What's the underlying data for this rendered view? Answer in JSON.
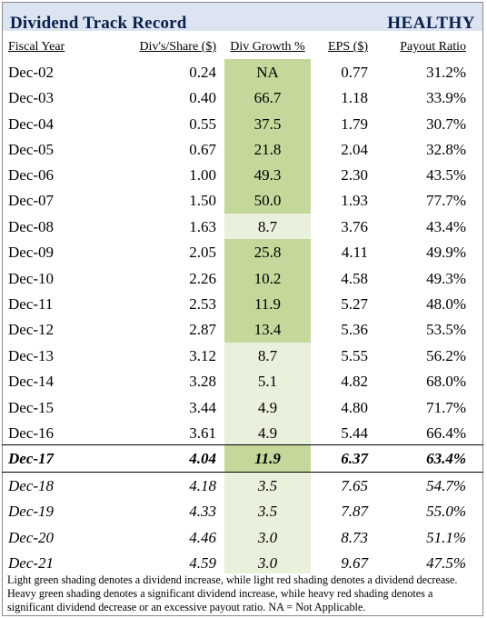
{
  "header": {
    "title": "Dividend Track Record",
    "status": "HEALTHY"
  },
  "colors": {
    "title_bar": "#dbe4f0",
    "title_text": "#0b1f4d",
    "heavy_green": "#c4d89b",
    "light_green": "#e9f0dc"
  },
  "columns": [
    "Fiscal Year",
    "Div's/Share ($)",
    "Div Growth %",
    "EPS ($)",
    "Payout Ratio"
  ],
  "rows": [
    {
      "year": "Dec-02",
      "div": "0.24",
      "growth": "NA",
      "eps": "0.77",
      "payout": "31.2%",
      "shade": "heavy"
    },
    {
      "year": "Dec-03",
      "div": "0.40",
      "growth": "66.7",
      "eps": "1.18",
      "payout": "33.9%",
      "shade": "heavy"
    },
    {
      "year": "Dec-04",
      "div": "0.55",
      "growth": "37.5",
      "eps": "1.79",
      "payout": "30.7%",
      "shade": "heavy"
    },
    {
      "year": "Dec-05",
      "div": "0.67",
      "growth": "21.8",
      "eps": "2.04",
      "payout": "32.8%",
      "shade": "heavy"
    },
    {
      "year": "Dec-06",
      "div": "1.00",
      "growth": "49.3",
      "eps": "2.30",
      "payout": "43.5%",
      "shade": "heavy"
    },
    {
      "year": "Dec-07",
      "div": "1.50",
      "growth": "50.0",
      "eps": "1.93",
      "payout": "77.7%",
      "shade": "heavy"
    },
    {
      "year": "Dec-08",
      "div": "1.63",
      "growth": "8.7",
      "eps": "3.76",
      "payout": "43.4%",
      "shade": "light"
    },
    {
      "year": "Dec-09",
      "div": "2.05",
      "growth": "25.8",
      "eps": "4.11",
      "payout": "49.9%",
      "shade": "heavy"
    },
    {
      "year": "Dec-10",
      "div": "2.26",
      "growth": "10.2",
      "eps": "4.58",
      "payout": "49.3%",
      "shade": "heavy"
    },
    {
      "year": "Dec-11",
      "div": "2.53",
      "growth": "11.9",
      "eps": "5.27",
      "payout": "48.0%",
      "shade": "heavy"
    },
    {
      "year": "Dec-12",
      "div": "2.87",
      "growth": "13.4",
      "eps": "5.36",
      "payout": "53.5%",
      "shade": "heavy"
    },
    {
      "year": "Dec-13",
      "div": "3.12",
      "growth": "8.7",
      "eps": "5.55",
      "payout": "56.2%",
      "shade": "light"
    },
    {
      "year": "Dec-14",
      "div": "3.28",
      "growth": "5.1",
      "eps": "4.82",
      "payout": "68.0%",
      "shade": "light"
    },
    {
      "year": "Dec-15",
      "div": "3.44",
      "growth": "4.9",
      "eps": "4.80",
      "payout": "71.7%",
      "shade": "light"
    },
    {
      "year": "Dec-16",
      "div": "3.61",
      "growth": "4.9",
      "eps": "5.44",
      "payout": "66.4%",
      "shade": "light"
    },
    {
      "year": "Dec-17",
      "div": "4.04",
      "growth": "11.9",
      "eps": "6.37",
      "payout": "63.4%",
      "shade": "heavy",
      "style": "current"
    },
    {
      "year": "Dec-18",
      "div": "4.18",
      "growth": "3.5",
      "eps": "7.65",
      "payout": "54.7%",
      "shade": "light",
      "style": "estimate"
    },
    {
      "year": "Dec-19",
      "div": "4.33",
      "growth": "3.5",
      "eps": "7.87",
      "payout": "55.0%",
      "shade": "light",
      "style": "estimate"
    },
    {
      "year": "Dec-20",
      "div": "4.46",
      "growth": "3.0",
      "eps": "8.73",
      "payout": "51.1%",
      "shade": "light",
      "style": "estimate"
    },
    {
      "year": "Dec-21",
      "div": "4.59",
      "growth": "3.0",
      "eps": "9.67",
      "payout": "47.5%",
      "shade": "light",
      "style": "estimate"
    }
  ],
  "footnote": "Light green shading denotes a dividend increase, while light red shading denotes a dividend decrease. Heavy green shading denotes a significant dividend increase, while heavy red shading denotes a significant dividend decrease or an excessive payout ratio. NA = Not Applicable."
}
